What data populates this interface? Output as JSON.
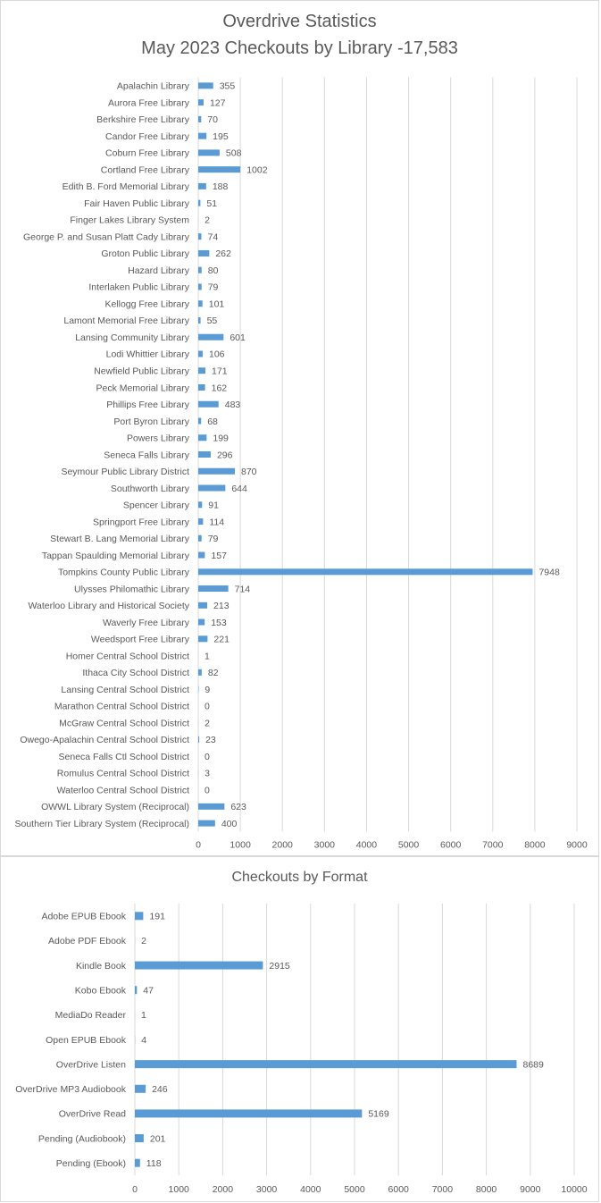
{
  "chart_data": [
    {
      "type": "bar",
      "orientation": "horizontal",
      "title": "Overdrive Statistics",
      "subtitle": "May 2023 Checkouts by Library -17,583",
      "categories": [
        "Apalachin Library",
        "Aurora Free Library",
        "Berkshire Free Library",
        "Candor Free Library",
        "Coburn Free Library",
        "Cortland Free Library",
        "Edith B. Ford Memorial Library",
        "Fair Haven Public Library",
        "Finger Lakes Library System",
        "George P. and Susan Platt Cady Library",
        "Groton Public Library",
        "Hazard Library",
        "Interlaken Public Library",
        "Kellogg Free Library",
        "Lamont Memorial Free Library",
        "Lansing Community Library",
        "Lodi Whittier Library",
        "Newfield Public Library",
        "Peck Memorial Library",
        "Phillips Free Library",
        "Port Byron Library",
        "Powers Library",
        "Seneca Falls Library",
        "Seymour Public Library District",
        "Southworth Library",
        "Spencer Library",
        "Springport Free Library",
        "Stewart B. Lang Memorial Library",
        "Tappan Spaulding Memorial Library",
        "Tompkins County Public Library",
        "Ulysses Philomathic Library",
        "Waterloo Library and Historical Society",
        "Waverly Free Library",
        "Weedsport Free Library",
        "Homer Central School District",
        "Ithaca City School District",
        "Lansing Central School District",
        "Marathon Central School District",
        "McGraw Central School District",
        "Owego-Apalachin Central School District",
        "Seneca Falls Ctl School District",
        "Romulus Central School District",
        "Waterloo Central School District",
        "OWWL Library System (Reciprocal)",
        "Southern Tier Library System (Reciprocal)"
      ],
      "values": [
        355,
        127,
        70,
        195,
        508,
        1002,
        188,
        51,
        2,
        74,
        262,
        80,
        79,
        101,
        55,
        601,
        106,
        171,
        162,
        483,
        68,
        199,
        296,
        870,
        644,
        91,
        114,
        79,
        157,
        7948,
        714,
        213,
        153,
        221,
        1,
        82,
        9,
        0,
        2,
        23,
        0,
        3,
        0,
        623,
        400
      ],
      "xlim": [
        0,
        9000
      ],
      "xticks": [
        0,
        1000,
        2000,
        3000,
        4000,
        5000,
        6000,
        7000,
        8000,
        9000
      ],
      "grid": true,
      "data_labels": true,
      "bar_color": "#5b9bd5"
    },
    {
      "type": "bar",
      "orientation": "horizontal",
      "title": "Checkouts by Format",
      "categories": [
        "Adobe EPUB Ebook",
        "Adobe PDF Ebook",
        "Kindle Book",
        "Kobo Ebook",
        "MediaDo Reader",
        "Open EPUB Ebook",
        "OverDrive Listen",
        "OverDrive MP3 Audiobook",
        "OverDrive Read",
        "Pending (Audiobook)",
        "Pending (Ebook)"
      ],
      "values": [
        191,
        2,
        2915,
        47,
        1,
        4,
        8689,
        246,
        5169,
        201,
        118
      ],
      "xlim": [
        0,
        10000
      ],
      "xticks": [
        0,
        1000,
        2000,
        3000,
        4000,
        5000,
        6000,
        7000,
        8000,
        9000,
        10000
      ],
      "grid": true,
      "data_labels": true,
      "bar_color": "#5b9bd5"
    }
  ]
}
